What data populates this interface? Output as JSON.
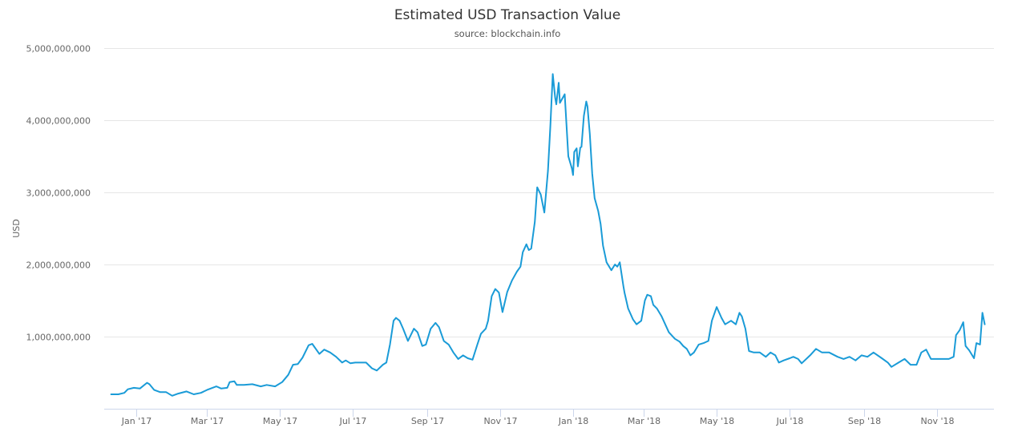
{
  "chart_data": {
    "type": "line",
    "title": "Estimated USD Transaction Value",
    "subtitle": "source: blockchain.info",
    "ylabel": "USD",
    "xlabel": "",
    "ylim": [
      0,
      5000000000
    ],
    "yticks": [
      1000000000,
      2000000000,
      3000000000,
      4000000000,
      5000000000
    ],
    "ytick_labels": [
      "1,000,000,000",
      "2,000,000,000",
      "3,000,000,000",
      "4,000,000,000",
      "5,000,000,000"
    ],
    "xticks": [
      "2017-01-01",
      "2017-03-01",
      "2017-05-01",
      "2017-07-01",
      "2017-09-01",
      "2017-11-01",
      "2018-01-01",
      "2018-03-01",
      "2018-05-01",
      "2018-07-01",
      "2018-09-01",
      "2018-11-01"
    ],
    "xtick_labels": [
      "Jan '17",
      "Mar '17",
      "May '17",
      "Jul '17",
      "Sep '17",
      "Nov '17",
      "Jan '18",
      "Mar '18",
      "May '18",
      "Jul '18",
      "Sep '18",
      "Nov '18"
    ],
    "xlim": [
      "2016-12-05",
      "2018-12-18"
    ],
    "grid": "horizontal",
    "legend": "none",
    "line_color": "#1a9bd7",
    "x": [
      "2016-12-11",
      "2016-12-17",
      "2016-12-22",
      "2016-12-25",
      "2016-12-30",
      "2017-01-04",
      "2017-01-10",
      "2017-01-12",
      "2017-01-16",
      "2017-01-21",
      "2017-01-26",
      "2017-01-31",
      "2017-02-05",
      "2017-02-12",
      "2017-02-18",
      "2017-02-24",
      "2017-03-01",
      "2017-03-09",
      "2017-03-13",
      "2017-03-18",
      "2017-03-20",
      "2017-03-24",
      "2017-03-26",
      "2017-04-01",
      "2017-04-08",
      "2017-04-15",
      "2017-04-20",
      "2017-04-27",
      "2017-05-03",
      "2017-05-08",
      "2017-05-12",
      "2017-05-16",
      "2017-05-20",
      "2017-05-25",
      "2017-05-28",
      "2017-06-03",
      "2017-06-07",
      "2017-06-12",
      "2017-06-17",
      "2017-06-22",
      "2017-06-25",
      "2017-06-29",
      "2017-07-03",
      "2017-07-07",
      "2017-07-12",
      "2017-07-17",
      "2017-07-21",
      "2017-07-26",
      "2017-07-29",
      "2017-08-01",
      "2017-08-04",
      "2017-08-06",
      "2017-08-09",
      "2017-08-12",
      "2017-08-16",
      "2017-08-21",
      "2017-08-24",
      "2017-08-28",
      "2017-08-31",
      "2017-09-04",
      "2017-09-08",
      "2017-09-11",
      "2017-09-15",
      "2017-09-19",
      "2017-09-23",
      "2017-09-27",
      "2017-10-01",
      "2017-10-05",
      "2017-10-09",
      "2017-10-13",
      "2017-10-16",
      "2017-10-20",
      "2017-10-22",
      "2017-10-25",
      "2017-10-28",
      "2017-10-31",
      "2017-11-03",
      "2017-11-07",
      "2017-11-11",
      "2017-11-15",
      "2017-11-18",
      "2017-11-20",
      "2017-11-23",
      "2017-11-25",
      "2017-11-27",
      "2017-11-30",
      "2017-12-02",
      "2017-12-05",
      "2017-12-08",
      "2017-12-11",
      "2017-12-13",
      "2017-12-15",
      "2017-12-17",
      "2017-12-18",
      "2017-12-20",
      "2017-12-21",
      "2017-12-25",
      "2017-12-28",
      "2017-12-31",
      "2018-01-01",
      "2018-01-02",
      "2018-01-04",
      "2018-01-05",
      "2018-01-07",
      "2018-01-08",
      "2018-01-10",
      "2018-01-12",
      "2018-01-13",
      "2018-01-15",
      "2018-01-17",
      "2018-01-19",
      "2018-01-22",
      "2018-01-24",
      "2018-01-26",
      "2018-01-29",
      "2018-02-02",
      "2018-02-05",
      "2018-02-07",
      "2018-02-09",
      "2018-02-12",
      "2018-02-13",
      "2018-02-16",
      "2018-02-20",
      "2018-02-23",
      "2018-02-27",
      "2018-03-02",
      "2018-03-04",
      "2018-03-07",
      "2018-03-09",
      "2018-03-12",
      "2018-03-16",
      "2018-03-19",
      "2018-03-22",
      "2018-03-27",
      "2018-03-31",
      "2018-04-03",
      "2018-04-06",
      "2018-04-09",
      "2018-04-12",
      "2018-04-16",
      "2018-04-20",
      "2018-04-24",
      "2018-04-27",
      "2018-05-01",
      "2018-05-05",
      "2018-05-08",
      "2018-05-13",
      "2018-05-17",
      "2018-05-20",
      "2018-05-22",
      "2018-05-25",
      "2018-05-28",
      "2018-06-01",
      "2018-06-06",
      "2018-06-11",
      "2018-06-15",
      "2018-06-19",
      "2018-06-22",
      "2018-06-26",
      "2018-07-01",
      "2018-07-04",
      "2018-07-08",
      "2018-07-11",
      "2018-07-18",
      "2018-07-23",
      "2018-07-28",
      "2018-08-03",
      "2018-08-10",
      "2018-08-15",
      "2018-08-20",
      "2018-08-25",
      "2018-08-30",
      "2018-09-04",
      "2018-09-09",
      "2018-09-16",
      "2018-09-21",
      "2018-09-24",
      "2018-09-30",
      "2018-10-05",
      "2018-10-10",
      "2018-10-15",
      "2018-10-19",
      "2018-10-23",
      "2018-10-27",
      "2018-11-01",
      "2018-11-05",
      "2018-11-11",
      "2018-11-15",
      "2018-11-17",
      "2018-11-20",
      "2018-11-23",
      "2018-11-25",
      "2018-11-28",
      "2018-12-02",
      "2018-12-04",
      "2018-12-07",
      "2018-12-09",
      "2018-12-11"
    ],
    "series": [
      {
        "values": [
          200000000.0,
          200000000.0,
          220000000.0,
          270000000.0,
          290000000.0,
          280000000.0,
          360000000.0,
          340000000.0,
          260000000.0,
          230000000.0,
          230000000.0,
          180000000.0,
          210000000.0,
          240000000.0,
          200000000.0,
          220000000.0,
          260000000.0,
          310000000.0,
          280000000.0,
          290000000.0,
          370000000.0,
          380000000.0,
          330000000.0,
          330000000.0,
          340000000.0,
          310000000.0,
          330000000.0,
          310000000.0,
          370000000.0,
          470000000.0,
          610000000.0,
          620000000.0,
          710000000.0,
          880000000.0,
          900000000.0,
          760000000.0,
          820000000.0,
          780000000.0,
          720000000.0,
          640000000.0,
          670000000.0,
          630000000.0,
          640000000.0,
          640000000.0,
          640000000.0,
          560000000.0,
          530000000.0,
          610000000.0,
          640000000.0,
          890000000.0,
          1220000000.0,
          1260000000.0,
          1220000000.0,
          1110000000.0,
          940000000.0,
          1110000000.0,
          1060000000.0,
          870000000.0,
          890000000.0,
          1110000000.0,
          1190000000.0,
          1130000000.0,
          940000000.0,
          890000000.0,
          780000000.0,
          690000000.0,
          740000000.0,
          700000000.0,
          680000000.0,
          890000000.0,
          1040000000.0,
          1110000000.0,
          1220000000.0,
          1560000000.0,
          1660000000.0,
          1610000000.0,
          1340000000.0,
          1620000000.0,
          1780000000.0,
          1900000000.0,
          1970000000.0,
          2170000000.0,
          2280000000.0,
          2200000000.0,
          2220000000.0,
          2590000000.0,
          3070000000.0,
          2970000000.0,
          2720000000.0,
          3300000000.0,
          3920000000.0,
          4640000000.0,
          4310000000.0,
          4220000000.0,
          4520000000.0,
          4240000000.0,
          4360000000.0,
          3500000000.0,
          3330000000.0,
          3240000000.0,
          3560000000.0,
          3610000000.0,
          3360000000.0,
          3620000000.0,
          3630000000.0,
          4060000000.0,
          4260000000.0,
          4190000000.0,
          3810000000.0,
          3260000000.0,
          2920000000.0,
          2740000000.0,
          2560000000.0,
          2260000000.0,
          2030000000.0,
          1920000000.0,
          2000000000.0,
          1970000000.0,
          2030000000.0,
          1700000000.0,
          1610000000.0,
          1390000000.0,
          1240000000.0,
          1170000000.0,
          1220000000.0,
          1500000000.0,
          1580000000.0,
          1560000000.0,
          1440000000.0,
          1390000000.0,
          1280000000.0,
          1170000000.0,
          1060000000.0,
          970000000.0,
          930000000.0,
          870000000.0,
          830000000.0,
          740000000.0,
          780000000.0,
          890000000.0,
          910000000.0,
          940000000.0,
          1220000000.0,
          1410000000.0,
          1260000000.0,
          1170000000.0,
          1220000000.0,
          1170000000.0,
          1330000000.0,
          1280000000.0,
          1110000000.0,
          800000000.0,
          780000000.0,
          780000000.0,
          720000000.0,
          780000000.0,
          740000000.0,
          640000000.0,
          670000000.0,
          700000000.0,
          720000000.0,
          690000000.0,
          630000000.0,
          740000000.0,
          830000000.0,
          780000000.0,
          780000000.0,
          720000000.0,
          690000000.0,
          720000000.0,
          670000000.0,
          740000000.0,
          720000000.0,
          780000000.0,
          700000000.0,
          640000000.0,
          580000000.0,
          640000000.0,
          690000000.0,
          610000000.0,
          610000000.0,
          780000000.0,
          820000000.0,
          690000000.0,
          690000000.0,
          690000000.0,
          690000000.0,
          720000000.0,
          1020000000.0,
          1090000000.0,
          1200000000.0,
          870000000.0,
          810000000.0,
          700000000.0,
          910000000.0,
          890000000.0,
          1330000000.0,
          1170000000.0
        ]
      }
    ]
  }
}
